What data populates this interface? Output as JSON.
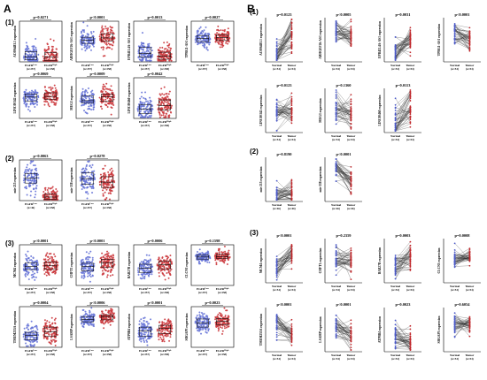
{
  "figure": {
    "panel_a": {
      "letter": "A",
      "groups": [
        "EGFR Low",
        "EGFR High"
      ],
      "ns": [
        "(n=257)",
        "(n=258)"
      ],
      "sections": [
        {
          "label": "(1)",
          "plots": [
            {
              "ylabel": "AC006483.1 expression",
              "pvalue": "p=0.0271"
            },
            {
              "ylabel": "ARHGEF26-AS1 expression",
              "pvalue": "p<0.0001"
            },
            {
              "ylabel": "EPB41L4A-AS1 expression",
              "pvalue": "p=0.0013"
            },
            {
              "ylabel": "TPRG1-AS1 expression",
              "pvalue": "p=0.0027"
            },
            {
              "ylabel": "LINC00342 expression",
              "pvalue": "p=0.0069"
            },
            {
              "ylabel": "MEG3 expression",
              "pvalue": "p=0.0009"
            },
            {
              "ylabel": "LINC00460 expression",
              "pvalue": "p=0.0042"
            }
          ]
        },
        {
          "label": "(2)",
          "plots": [
            {
              "ylabel": "mir-215 expression",
              "pvalue": "p=0.0063",
              "ns": [
                "(n=46)",
                "(n=258)"
              ]
            },
            {
              "ylabel": "mir-338 expression",
              "pvalue": "p=0.0278"
            }
          ]
        },
        {
          "label": "(3)",
          "plots": [
            {
              "ylabel": "MCM4 expression",
              "pvalue": "p<0.0001"
            },
            {
              "ylabel": "CHFT1 expression",
              "pvalue": "p<0.0001"
            },
            {
              "ylabel": "RAB27B expression",
              "pvalue": "p=0.0006"
            },
            {
              "ylabel": "CLCN3 expression",
              "pvalue": "p=0.1598"
            },
            {
              "ylabel": "TMEM255A expression",
              "pvalue": "p=0.0004"
            },
            {
              "ylabel": "LSAMP expression",
              "pvalue": "p<0.0006"
            },
            {
              "ylabel": "ATP8B4 expression",
              "pvalue": "p<0.0001"
            },
            {
              "ylabel": "SRGAP3 expression",
              "pvalue": "p=0.0023"
            }
          ]
        }
      ]
    },
    "panel_b": {
      "letter": "B",
      "groups": [
        "Normal",
        "Tumor"
      ],
      "ns": [
        "(n=54)",
        "(n=54)"
      ],
      "sections": [
        {
          "label": "(1)",
          "plots": [
            {
              "ylabel": "AC006483.1 expression",
              "pvalue": "p=0.0123"
            },
            {
              "ylabel": "ARHGEF26-AS1 expression",
              "pvalue": "p<0.0005"
            },
            {
              "ylabel": "EPB41L4A-AS1 expression",
              "pvalue": "p=0.0031"
            },
            {
              "ylabel": "TPRG1-AS1 expression",
              "pvalue": "p<0.0001"
            },
            {
              "ylabel": "LINC00342 expression",
              "pvalue": "p=0.0123"
            },
            {
              "ylabel": "MEG3 expression",
              "pvalue": "p=0.1360"
            },
            {
              "ylabel": "LINC00460 expression",
              "pvalue": "p=0.0113"
            }
          ]
        },
        {
          "label": "(2)",
          "plots": [
            {
              "ylabel": "mir-215 expression",
              "pvalue": "p=0.8190",
              "ns": [
                "(n=46)",
                "(n=46)"
              ]
            },
            {
              "ylabel": "mir-338 expression",
              "pvalue": "p<0.0001",
              "ns": [
                "(n=46)",
                "(n=46)"
              ]
            }
          ]
        },
        {
          "label": "(3)",
          "plots": [
            {
              "ylabel": "MCM4 expression",
              "pvalue": "p<0.0001"
            },
            {
              "ylabel": "CHFT1 expression",
              "pvalue": "p=0.2359"
            },
            {
              "ylabel": "RAB27B expression",
              "pvalue": "p=0.0003"
            },
            {
              "ylabel": "CLCN3 expression",
              "pvalue": "p=0.0008"
            },
            {
              "ylabel": "TMEM255A expression",
              "pvalue": "p<0.0001"
            },
            {
              "ylabel": "LSAMP expression",
              "pvalue": "p<0.0001"
            },
            {
              "ylabel": "ATP8B4 expression",
              "pvalue": "p=0.0023"
            },
            {
              "ylabel": "SRGAP3 expression",
              "pvalue": "p=0.6054"
            }
          ]
        }
      ]
    },
    "colors": {
      "low": "#4a58c8",
      "high": "#c0262a",
      "low_fill": "#7884df",
      "high_fill": "#d2484c"
    }
  }
}
